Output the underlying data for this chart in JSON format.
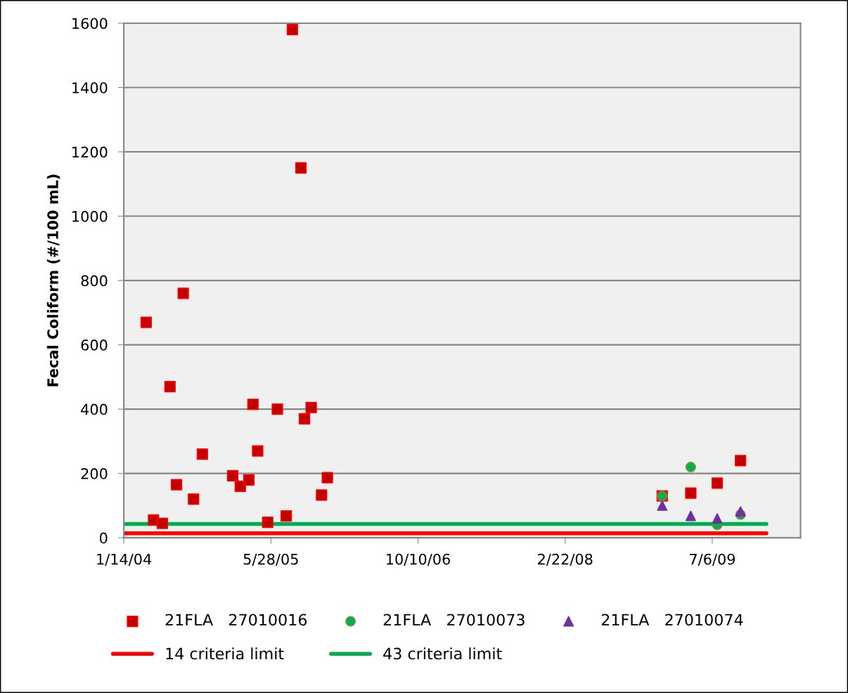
{
  "chart_data": {
    "type": "scatter",
    "ylabel": "Fecal Coliform (#/100 mL)",
    "xlim": [
      "2004-01-14",
      "2010-05-02"
    ],
    "xticks": [
      {
        "value": "2004-01-14",
        "label": "1/14/04"
      },
      {
        "value": "2005-05-28",
        "label": "5/28/05"
      },
      {
        "value": "2006-10-10",
        "label": "10/10/06"
      },
      {
        "value": "2008-02-22",
        "label": "2/22/08"
      },
      {
        "value": "2009-07-06",
        "label": "7/6/09"
      }
    ],
    "ylim": [
      0,
      1600
    ],
    "yticks": [
      0,
      200,
      400,
      600,
      800,
      1000,
      1200,
      1400,
      1600
    ],
    "grid": "y",
    "legend": "bottom",
    "series": [
      {
        "name": "21FLA   27010016",
        "marker": "square",
        "color": "#c00000",
        "x": [
          "2004-03-30",
          "2004-04-24",
          "2004-05-24",
          "2004-06-19",
          "2004-07-11",
          "2004-08-03",
          "2004-09-07",
          "2004-10-07",
          "2005-01-18",
          "2005-02-13",
          "2005-03-14",
          "2005-03-28",
          "2005-04-13",
          "2005-05-17",
          "2005-06-19",
          "2005-07-19",
          "2005-08-09",
          "2005-09-07",
          "2005-09-19",
          "2005-10-12",
          "2005-11-16",
          "2005-12-06",
          "2009-01-17",
          "2009-04-24",
          "2009-07-23",
          "2009-10-10"
        ],
        "values": [
          670,
          55,
          45,
          470,
          165,
          760,
          120,
          260,
          193,
          160,
          180,
          415,
          270,
          48,
          400,
          68,
          1580,
          1150,
          370,
          405,
          133,
          187,
          130,
          139,
          170,
          240
        ]
      },
      {
        "name": "21FLA   27010073",
        "marker": "circle",
        "color": "#00b050",
        "x": [
          "2009-01-17",
          "2009-04-24",
          "2009-07-23",
          "2009-10-10"
        ],
        "values": [
          130,
          220,
          40,
          72
        ]
      },
      {
        "name": "21FLA   27010074",
        "marker": "triangle",
        "color": "#7030a0",
        "x": [
          "2009-01-17",
          "2009-04-24",
          "2009-07-23",
          "2009-10-10"
        ],
        "values": [
          100,
          68,
          60,
          82
        ]
      },
      {
        "name": "14 criteria limit",
        "type": "line",
        "marker": "none",
        "line_style": "solid",
        "color": "#ff0000",
        "x": [
          "2004-01-14",
          "2010-01-06"
        ],
        "values": [
          14,
          14
        ]
      },
      {
        "name": "43 criteria limit",
        "type": "line",
        "marker": "none",
        "line_style": "solid",
        "color": "#00b050",
        "x": [
          "2004-01-14",
          "2010-01-06"
        ],
        "values": [
          43,
          43
        ]
      }
    ]
  }
}
